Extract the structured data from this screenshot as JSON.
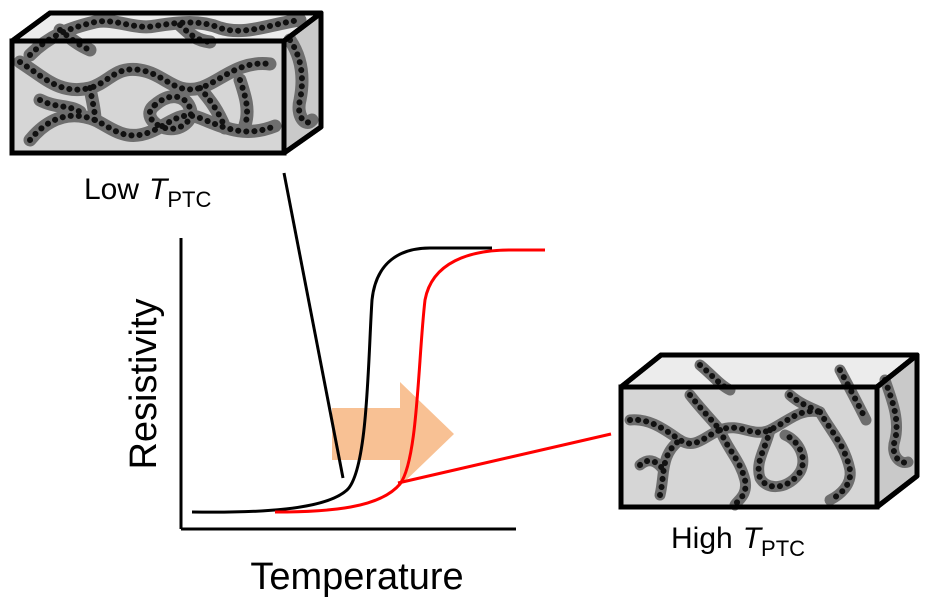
{
  "labels": {
    "low_prefix": "Low",
    "high_prefix": "High",
    "t_symbol": "T",
    "t_subscript": "PTC"
  },
  "axes": {
    "ylabel": "Resistivity",
    "xlabel": "Temperature"
  },
  "chart_data": {
    "type": "line",
    "xlabel": "Temperature",
    "ylabel": "Resistivity",
    "series": [
      {
        "label": "Low T_PTC",
        "color": "#000000"
      },
      {
        "label": "High T_PTC",
        "color": "#ff0000"
      }
    ]
  },
  "colors": {
    "low_curve": "#000000",
    "high_curve": "#ff0000",
    "shift_arrow": "#f5a05a",
    "box_fill": "#d8d8d8",
    "polymer_network": "#6e6e6e",
    "filler_particles": "#111111"
  },
  "icons": {
    "shift_arrow": "right-arrow-icon"
  }
}
